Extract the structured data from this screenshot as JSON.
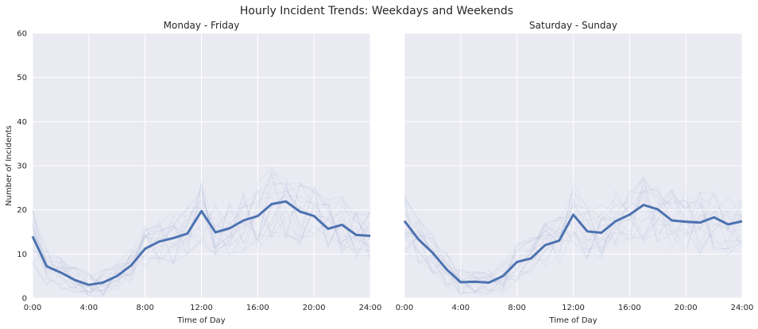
{
  "figure": {
    "title": "Hourly Incident Trends: Weekdays and Weekends"
  },
  "chart_data": [
    {
      "type": "line",
      "title": "Monday - Friday",
      "xlabel": "Time of Day",
      "ylabel": "Number of Incidents",
      "xlim": [
        0,
        24
      ],
      "ylim": [
        0,
        60
      ],
      "xtick_values": [
        0,
        4,
        8,
        12,
        16,
        20,
        24
      ],
      "xtick_labels": [
        "0:00",
        "4:00",
        "8:00",
        "12:00",
        "16:00",
        "20:00",
        "24:00"
      ],
      "ytick_values": [
        0,
        10,
        20,
        30,
        40,
        50,
        60
      ],
      "ytick_labels": [
        "0",
        "10",
        "20",
        "30",
        "40",
        "50",
        "60"
      ],
      "grid": true,
      "background": "#eaeaf2",
      "series": [
        {
          "color": "#4c72b0",
          "x": [
            0,
            1,
            2,
            3,
            4,
            5,
            6,
            7,
            8,
            9,
            10,
            11,
            12,
            13,
            14,
            15,
            16,
            17,
            18,
            19,
            20,
            21,
            22,
            23,
            24
          ],
          "values": [
            14.0,
            7.2,
            5.8,
            4.1,
            3.0,
            3.5,
            5.0,
            7.4,
            11.2,
            12.8,
            13.6,
            14.6,
            19.7,
            14.9,
            15.8,
            17.6,
            18.6,
            21.3,
            21.9,
            19.6,
            18.6,
            15.7,
            16.6,
            14.3,
            14.1
          ]
        }
      ],
      "background_series_note": "faint individual day traces"
    },
    {
      "type": "line",
      "title": "Saturday - Sunday",
      "xlabel": "Time of Day",
      "ylabel": "",
      "xlim": [
        0,
        24
      ],
      "ylim": [
        0,
        60
      ],
      "xtick_values": [
        0,
        4,
        8,
        12,
        16,
        20,
        24
      ],
      "xtick_labels": [
        "0:00",
        "4:00",
        "8:00",
        "12:00",
        "16:00",
        "20:00",
        "24:00"
      ],
      "grid": true,
      "background": "#eaeaf2",
      "series": [
        {
          "color": "#4c72b0",
          "x": [
            0,
            1,
            2,
            3,
            4,
            5,
            6,
            7,
            8,
            9,
            10,
            11,
            12,
            13,
            14,
            15,
            16,
            17,
            18,
            19,
            20,
            21,
            22,
            23,
            24
          ],
          "values": [
            17.5,
            13.3,
            10.3,
            6.5,
            3.6,
            3.7,
            3.5,
            5.0,
            8.2,
            9.0,
            12.0,
            13.0,
            18.9,
            15.1,
            14.8,
            17.4,
            18.9,
            21.1,
            20.1,
            17.6,
            17.3,
            17.1,
            18.3,
            16.7,
            17.4
          ]
        }
      ]
    }
  ]
}
